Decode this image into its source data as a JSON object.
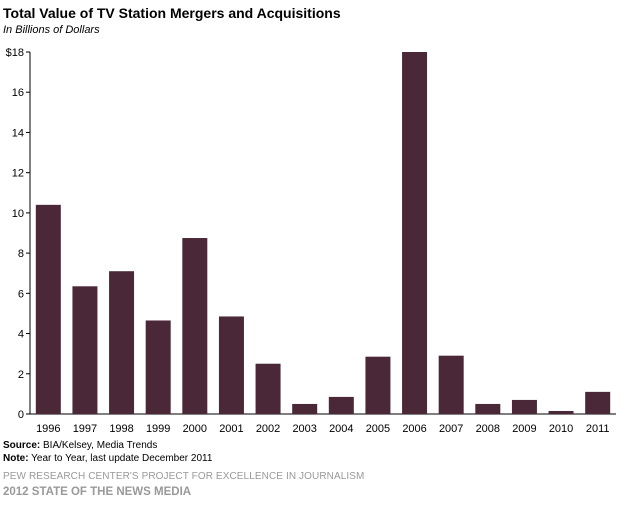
{
  "chart_data": {
    "type": "bar",
    "title": "Total Value of TV Station Mergers and Acquisitions",
    "subtitle": "In Billions of Dollars",
    "categories": [
      "1996",
      "1997",
      "1998",
      "1999",
      "2000",
      "2001",
      "2002",
      "2003",
      "2004",
      "2005",
      "2006",
      "2007",
      "2008",
      "2009",
      "2010",
      "2011"
    ],
    "values": [
      10.4,
      6.35,
      7.1,
      4.65,
      8.75,
      4.85,
      2.5,
      0.5,
      0.85,
      2.85,
      18.0,
      2.9,
      0.5,
      0.7,
      0.15,
      1.1
    ],
    "yticks": [
      "0",
      "2",
      "4",
      "6",
      "8",
      "10",
      "12",
      "14",
      "16",
      "$18"
    ],
    "ylim": [
      0,
      18
    ],
    "bar_color": "#4a2838",
    "grid": false
  },
  "footer": {
    "source_label": "Source:",
    "source_text": " BIA/Kelsey, Media Trends",
    "note_label": "Note:",
    "note_text": " Year to Year, last update December 2011",
    "org": "PEW RESEARCH CENTER'S PROJECT FOR EXCELLENCE IN JOURNALISM",
    "report": "2012 STATE OF THE NEWS MEDIA"
  }
}
